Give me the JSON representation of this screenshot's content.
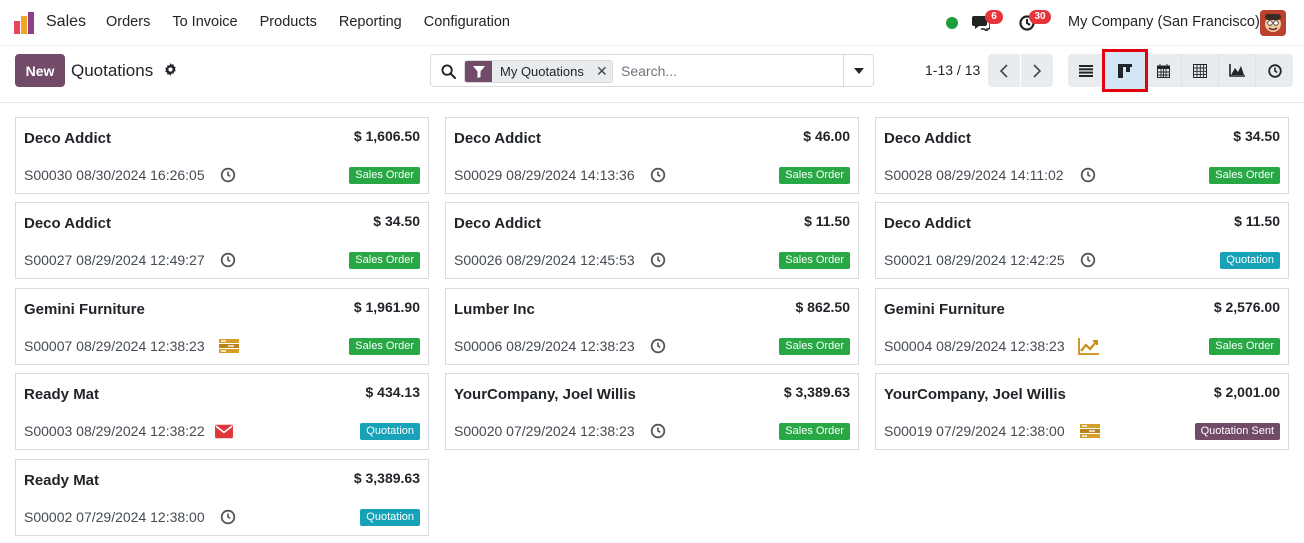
{
  "navbar": {
    "app_name": "Sales",
    "menu": [
      "Orders",
      "To Invoice",
      "Products",
      "Reporting",
      "Configuration"
    ],
    "chat_count": "6",
    "activity_count": "30",
    "company": "My Company (San Francisco)"
  },
  "control": {
    "new_label": "New",
    "breadcrumb": "Quotations",
    "facet_label": "My Quotations",
    "search_placeholder": "Search...",
    "pager_value": "1-13 / 13"
  },
  "colors": {
    "brand": "#714b67",
    "sales_order_badge": "#28a745",
    "quotation_badge": "#17a2b8",
    "quotation_sent_badge": "#714b67",
    "highlight": "#e3000f"
  },
  "views": [
    "list-view-icon",
    "kanban-view-icon",
    "calendar-view-icon",
    "pivot-view-icon",
    "graph-view-icon",
    "activity-view-icon"
  ],
  "cards": [
    {
      "name": "Deco Addict",
      "amount": "$ 1,606.50",
      "ref": "S00030 08/30/2024 16:26:05",
      "activity": "clock-icon",
      "status": "Sales Order"
    },
    {
      "name": "Deco Addict",
      "amount": "$ 46.00",
      "ref": "S00029 08/29/2024 14:13:36",
      "activity": "clock-icon",
      "status": "Sales Order"
    },
    {
      "name": "Deco Addict",
      "amount": "$ 34.50",
      "ref": "S00028 08/29/2024 14:11:02",
      "activity": "clock-icon",
      "status": "Sales Order"
    },
    {
      "name": "Deco Addict",
      "amount": "$ 34.50",
      "ref": "S00027 08/29/2024 12:49:27",
      "activity": "clock-icon",
      "status": "Sales Order"
    },
    {
      "name": "Deco Addict",
      "amount": "$ 11.50",
      "ref": "S00026 08/29/2024 12:45:53",
      "activity": "clock-icon",
      "status": "Sales Order"
    },
    {
      "name": "Deco Addict",
      "amount": "$ 11.50",
      "ref": "S00021 08/29/2024 12:42:25",
      "activity": "clock-icon",
      "status": "Quotation"
    },
    {
      "name": "Gemini Furniture",
      "amount": "$ 1,961.90",
      "ref": "S00007 08/29/2024 12:38:23",
      "activity": "tasks-icon",
      "status": "Sales Order"
    },
    {
      "name": "Lumber Inc",
      "amount": "$ 862.50",
      "ref": "S00006 08/29/2024 12:38:23",
      "activity": "clock-icon",
      "status": "Sales Order"
    },
    {
      "name": "Gemini Furniture",
      "amount": "$ 2,576.00",
      "ref": "S00004 08/29/2024 12:38:23",
      "activity": "chart-line-icon",
      "status": "Sales Order"
    },
    {
      "name": "Ready Mat",
      "amount": "$ 434.13",
      "ref": "S00003 08/29/2024 12:38:22",
      "activity": "envelope-icon",
      "status": "Quotation"
    },
    {
      "name": "YourCompany, Joel Willis",
      "amount": "$ 3,389.63",
      "ref": "S00020 07/29/2024 12:38:23",
      "activity": "clock-icon",
      "status": "Sales Order"
    },
    {
      "name": "YourCompany, Joel Willis",
      "amount": "$ 2,001.00",
      "ref": "S00019 07/29/2024 12:38:00",
      "activity": "tasks-icon",
      "status": "Quotation Sent"
    },
    {
      "name": "Ready Mat",
      "amount": "$ 3,389.63",
      "ref": "S00002 07/29/2024 12:38:00",
      "activity": "clock-icon",
      "status": "Quotation"
    }
  ]
}
